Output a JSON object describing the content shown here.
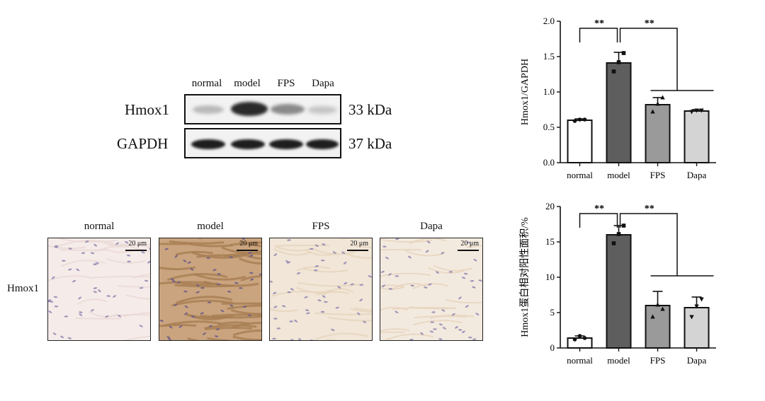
{
  "western_blot": {
    "lanes": [
      "normal",
      "model",
      "FPS",
      "Dapa"
    ],
    "rows": [
      {
        "label": "Hmox1",
        "kda": "33 kDa"
      },
      {
        "label": "GAPDH",
        "kda": "37 kDa"
      }
    ]
  },
  "ihc": {
    "groups": [
      "normal",
      "model",
      "FPS",
      "Dapa"
    ],
    "row_label": "Hmox1",
    "scale_bar": "20 μm",
    "tints": [
      "#f5ece9",
      "#c9a47e",
      "#f1e6d7",
      "#f3eadf"
    ]
  },
  "chart_data": [
    {
      "type": "bar",
      "categories": [
        "normal",
        "model",
        "FPS",
        "Dapa"
      ],
      "values": [
        0.6,
        1.41,
        0.82,
        0.73
      ],
      "errors": [
        0.02,
        0.15,
        0.1,
        0.02
      ],
      "points": [
        [
          0.59,
          0.61,
          0.61
        ],
        [
          1.29,
          1.42,
          1.55
        ],
        [
          0.72,
          0.83,
          0.92
        ],
        [
          0.72,
          0.74,
          0.74
        ]
      ],
      "bar_colors": [
        "#ffffff",
        "#5e5e5e",
        "#9a9a9a",
        "#d4d4d4"
      ],
      "ylabel": "Hmox1/GAPDH",
      "ylim": [
        0,
        2.0
      ],
      "yticks": [
        "0.0",
        "0.5",
        "1.0",
        "1.5",
        "2.0"
      ],
      "significance": [
        {
          "from": "normal",
          "to": "model",
          "label": "**"
        },
        {
          "from": "model",
          "to": "FPS/Dapa",
          "label": "**"
        }
      ]
    },
    {
      "type": "bar",
      "categories": [
        "normal",
        "model",
        "FPS",
        "Dapa"
      ],
      "values": [
        1.4,
        16.0,
        6.0,
        5.7
      ],
      "errors": [
        0.3,
        1.3,
        2.0,
        1.5
      ],
      "points": [
        [
          1.2,
          1.7,
          1.4
        ],
        [
          14.8,
          16.1,
          17.3
        ],
        [
          4.4,
          6.1,
          5.5
        ],
        [
          4.4,
          5.9,
          6.9
        ]
      ],
      "bar_colors": [
        "#ffffff",
        "#5e5e5e",
        "#9a9a9a",
        "#d4d4d4"
      ],
      "ylabel": "Hmox1蛋白相对阳性面积/%",
      "ylim": [
        0,
        20
      ],
      "yticks": [
        "0",
        "5",
        "10",
        "15",
        "20"
      ],
      "significance": [
        {
          "from": "normal",
          "to": "model",
          "label": "**"
        },
        {
          "from": "model",
          "to": "FPS/Dapa",
          "label": "**"
        }
      ]
    }
  ]
}
